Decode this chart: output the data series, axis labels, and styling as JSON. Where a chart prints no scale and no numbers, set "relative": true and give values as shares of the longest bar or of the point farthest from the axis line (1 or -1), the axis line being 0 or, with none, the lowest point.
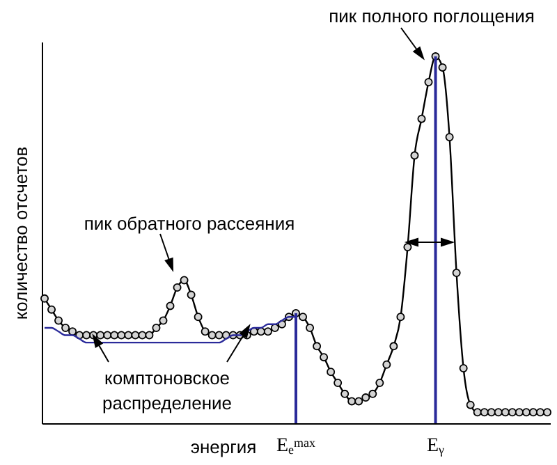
{
  "chart_data": {
    "type": "line",
    "relative": true,
    "xlabel": "энергия",
    "ylabel": "количество отсчетов",
    "tick_labels": "x",
    "annotations": [
      "пик полного поглощения",
      "пик обратного рассеяния",
      "комптоновское распределение"
    ],
    "categories": [
      null,
      null,
      null,
      null,
      null,
      null,
      null,
      null,
      null,
      null,
      null,
      null,
      null,
      null,
      null,
      null,
      null,
      null,
      null,
      null,
      null,
      null,
      null,
      null,
      null,
      null,
      null,
      null,
      null,
      null,
      null,
      null,
      null,
      null,
      null,
      null,
      "E$_{e}$$^{max}$",
      null,
      null,
      null,
      null,
      null,
      null,
      null,
      null,
      null,
      null,
      null,
      null,
      null,
      null,
      null,
      null,
      null,
      null,
      null,
      "E$_{γ}$",
      null,
      null,
      null,
      null,
      null,
      null,
      null,
      null,
      null,
      null,
      null,
      null,
      null,
      null,
      null,
      null
    ],
    "series": [
      {
        "color": "#000000",
        "marker": "circle",
        "values": [
          0.34,
          0.31,
          0.28,
          0.26,
          0.25,
          0.24,
          0.24,
          0.24,
          0.24,
          0.24,
          0.24,
          0.24,
          0.24,
          0.24,
          0.24,
          0.24,
          0.26,
          0.28,
          0.32,
          0.37,
          0.39,
          0.35,
          0.29,
          0.25,
          0.24,
          0.24,
          0.24,
          0.24,
          0.24,
          0.24,
          0.25,
          0.25,
          0.25,
          0.26,
          0.27,
          0.29,
          0.3,
          0.29,
          0.26,
          0.21,
          0.18,
          0.14,
          0.11,
          0.08,
          0.06,
          0.06,
          0.07,
          0.08,
          0.11,
          0.16,
          0.21,
          0.29,
          0.48,
          0.73,
          0.83,
          0.93,
          1,
          0.97,
          0.78,
          0.41,
          0.15,
          0.05,
          0.03,
          0.03,
          0.03,
          0.03,
          0.03,
          0.03,
          0.03,
          0.03,
          0.03,
          0.03,
          0.03
        ]
      },
      {
        "color": "#2a2a9a",
        "marker": "none",
        "values": [
          0.26,
          0.26,
          0.25,
          0.24,
          0.24,
          0.23,
          0.22,
          0.22,
          0.22,
          0.22,
          0.22,
          0.22,
          0.22,
          0.22,
          0.22,
          0.22,
          0.22,
          0.22,
          0.22,
          0.22,
          0.22,
          0.22,
          0.22,
          0.22,
          0.22,
          0.22,
          0.23,
          0.24,
          0.24,
          0.25,
          0.26,
          0.26,
          0.27,
          0.27,
          0.28,
          0.29,
          0.29,
          null,
          null,
          null,
          null,
          null,
          null,
          null,
          null,
          null,
          null,
          null,
          null,
          null,
          null,
          null,
          null,
          null,
          null,
          null,
          null,
          null,
          null,
          null,
          null,
          null,
          null,
          null,
          null,
          null,
          null,
          null,
          null,
          null,
          null,
          null,
          null
        ]
      }
    ],
    "ref_lines": [
      {
        "axis": "x",
        "value": "E$_{e}$$^{max}$",
        "color": "#2a2a9a"
      },
      {
        "axis": "x",
        "value": "E$_{γ}$",
        "color": "#2a2a9a"
      }
    ]
  }
}
